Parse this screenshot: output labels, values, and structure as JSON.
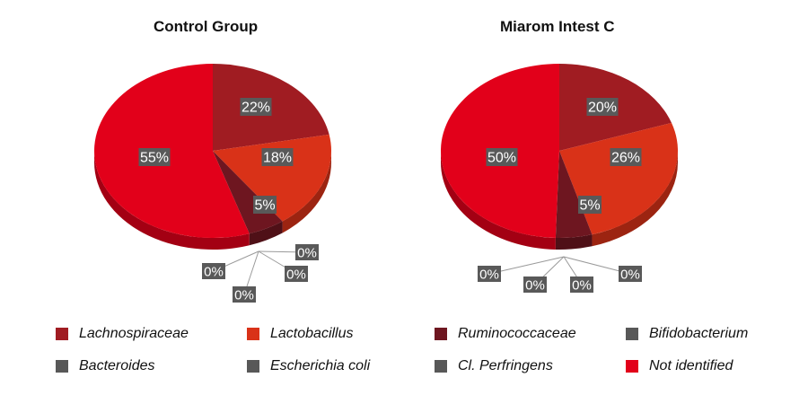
{
  "chart_data": [
    {
      "type": "pie",
      "title": "Control Group",
      "slices": [
        {
          "label": "Lachnospiraceae",
          "value": 22,
          "text": "22%"
        },
        {
          "label": "Lactobacillus",
          "value": 18,
          "text": "18%"
        },
        {
          "label": "Ruminococcaceae",
          "value": 5,
          "text": "5%"
        },
        {
          "label": "Bifidobacterium",
          "value": 0,
          "text": "0%"
        },
        {
          "label": "Bacteroides",
          "value": 0,
          "text": "0%"
        },
        {
          "label": "Escherichia coli",
          "value": 0,
          "text": "0%"
        },
        {
          "label": "Cl. Perfringens",
          "value": 0,
          "text": "0%"
        },
        {
          "label": "Not identified",
          "value": 55,
          "text": "55%"
        }
      ]
    },
    {
      "type": "pie",
      "title": "Miarom Intest C",
      "slices": [
        {
          "label": "Lachnospiraceae",
          "value": 20,
          "text": "20%"
        },
        {
          "label": "Lactobacillus",
          "value": 26,
          "text": "26%"
        },
        {
          "label": "Ruminococcaceae",
          "value": 5,
          "text": "5%"
        },
        {
          "label": "Bifidobacterium",
          "value": 0,
          "text": "0%"
        },
        {
          "label": "Bacteroides",
          "value": 0,
          "text": "0%"
        },
        {
          "label": "Escherichia coli",
          "value": 0,
          "text": "0%"
        },
        {
          "label": "Cl. Perfringens",
          "value": 0,
          "text": "0%"
        },
        {
          "label": "Not identified",
          "value": 50,
          "text": "50%"
        }
      ]
    }
  ],
  "legend": [
    {
      "label": "Lachnospiraceae",
      "color": "#a01c22"
    },
    {
      "label": "Lactobacillus",
      "color": "#d93218"
    },
    {
      "label": "Ruminococcaceae",
      "color": "#6e1620"
    },
    {
      "label": "Bifidobacterium",
      "color": "#585858"
    },
    {
      "label": "Bacteroides",
      "color": "#585858"
    },
    {
      "label": "Escherichia coli",
      "color": "#585858"
    },
    {
      "label": "Cl. Perfringens",
      "color": "#585858"
    },
    {
      "label": "Not identified",
      "color": "#e2001a"
    }
  ],
  "colors": {
    "label_box": "#595959",
    "label_text": "#ffffff",
    "leader_line": "#9a9a9a"
  }
}
